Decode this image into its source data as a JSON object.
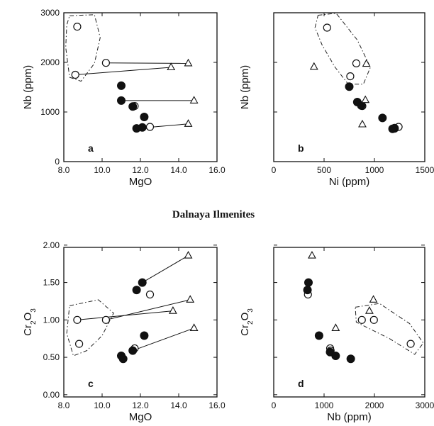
{
  "title": "Dalnaya Ilmenites",
  "chart_data": [
    {
      "panel": "a",
      "type": "scatter",
      "xlabel": "MgO",
      "ylabel": "Nb (ppm)",
      "xlim": [
        8.0,
        16.0
      ],
      "ylim": [
        0,
        3000
      ],
      "xticks": [
        "8.0",
        "10.0",
        "12.0",
        "14.0",
        "16.0"
      ],
      "yticks": [
        "0",
        "1000",
        "2000",
        "3000"
      ],
      "ytick_values": [
        0,
        1000,
        2000,
        3000
      ],
      "ytick_offset": 0,
      "points": {
        "open_circle": [
          [
            8.7,
            2720
          ],
          [
            8.6,
            1750
          ],
          [
            10.2,
            1990
          ],
          [
            11.7,
            1120
          ],
          [
            12.5,
            700
          ]
        ],
        "filled_circle": [
          [
            11.0,
            1530
          ],
          [
            11.0,
            1230
          ],
          [
            11.6,
            1110
          ],
          [
            12.2,
            900
          ],
          [
            11.8,
            670
          ],
          [
            12.1,
            690
          ]
        ],
        "triangle": [
          [
            14.5,
            1980
          ],
          [
            13.6,
            1900
          ],
          [
            14.8,
            1230
          ],
          [
            14.5,
            760
          ]
        ]
      },
      "lines": [
        [
          [
            8.6,
            1750
          ],
          [
            13.6,
            1900
          ]
        ],
        [
          [
            10.2,
            1990
          ],
          [
            14.5,
            1980
          ]
        ],
        [
          [
            11.0,
            1230
          ],
          [
            14.8,
            1230
          ]
        ],
        [
          [
            11.8,
            670
          ],
          [
            14.5,
            760
          ]
        ]
      ],
      "envelope": [
        [
          8.3,
          2940
        ],
        [
          9.6,
          2960
        ],
        [
          9.9,
          2500
        ],
        [
          9.6,
          1980
        ],
        [
          8.9,
          1620
        ],
        [
          8.3,
          1700
        ],
        [
          8.1,
          2300
        ],
        [
          8.15,
          2750
        ]
      ]
    },
    {
      "panel": "b",
      "type": "scatter",
      "xlabel": "Ni (ppm)",
      "ylabel": "Nb (ppm)",
      "xlim": [
        0,
        1500
      ],
      "ylim": [
        0,
        3000
      ],
      "xticks": [
        "0",
        "500",
        "1000",
        "1500"
      ],
      "yticks": [],
      "ytick_values": [
        0,
        1000,
        2000,
        3000
      ],
      "ytick_offset": 0,
      "points": {
        "open_circle": [
          [
            530,
            2700
          ],
          [
            820,
            1980
          ],
          [
            760,
            1720
          ],
          [
            880,
            1120
          ],
          [
            1240,
            700
          ],
          [
            1200,
            680
          ]
        ],
        "filled_circle": [
          [
            750,
            1510
          ],
          [
            830,
            1200
          ],
          [
            870,
            1130
          ],
          [
            1080,
            880
          ],
          [
            1200,
            670
          ],
          [
            1180,
            660
          ]
        ],
        "triangle": [
          [
            400,
            1910
          ],
          [
            920,
            1970
          ],
          [
            910,
            1240
          ],
          [
            880,
            750
          ]
        ]
      },
      "lines": [],
      "envelope": [
        [
          440,
          2950
        ],
        [
          620,
          2990
        ],
        [
          830,
          2450
        ],
        [
          960,
          1900
        ],
        [
          890,
          1560
        ],
        [
          740,
          1560
        ],
        [
          610,
          1900
        ],
        [
          480,
          2350
        ],
        [
          410,
          2700
        ]
      ]
    },
    {
      "panel": "c",
      "type": "scatter",
      "xlabel": "MgO",
      "ylabel": "Cr2O3",
      "xlim": [
        8.0,
        16.0
      ],
      "ylim": [
        0.0,
        2.0
      ],
      "xticks": [
        "8.0",
        "10.0",
        "12.0",
        "14.0",
        "16.0"
      ],
      "yticks": [
        "0.00",
        "0.50",
        "1.00",
        "1.50",
        "2.00"
      ],
      "ytick_values": [
        0.0,
        0.5,
        1.0,
        1.5,
        2.0
      ],
      "ytick_offset": 0.03,
      "points": {
        "open_circle": [
          [
            8.7,
            1.03
          ],
          [
            8.8,
            0.71
          ],
          [
            10.2,
            1.03
          ],
          [
            11.7,
            0.65
          ],
          [
            12.5,
            1.37
          ]
        ],
        "filled_circle": [
          [
            11.8,
            1.43
          ],
          [
            12.1,
            1.53
          ],
          [
            12.2,
            0.82
          ],
          [
            11.6,
            0.62
          ],
          [
            11.0,
            0.55
          ],
          [
            11.1,
            0.51
          ]
        ],
        "triangle": [
          [
            14.5,
            1.89
          ],
          [
            13.7,
            1.15
          ],
          [
            14.6,
            1.3
          ],
          [
            14.8,
            0.92
          ]
        ]
      },
      "lines": [
        [
          [
            12.1,
            1.53
          ],
          [
            14.5,
            1.89
          ]
        ],
        [
          [
            8.7,
            1.03
          ],
          [
            13.7,
            1.15
          ]
        ],
        [
          [
            10.2,
            1.03
          ],
          [
            14.6,
            1.3
          ]
        ],
        [
          [
            11.6,
            0.62
          ],
          [
            14.8,
            0.92
          ]
        ]
      ],
      "envelope": [
        [
          8.3,
          1.22
        ],
        [
          9.8,
          1.3
        ],
        [
          10.6,
          1.12
        ],
        [
          10.0,
          0.82
        ],
        [
          9.2,
          0.62
        ],
        [
          8.5,
          0.55
        ],
        [
          8.15,
          0.85
        ]
      ]
    },
    {
      "panel": "d",
      "type": "scatter",
      "xlabel": "Nb (ppm)",
      "ylabel": "Cr2O3",
      "xlim": [
        0,
        3000
      ],
      "ylim": [
        0.0,
        2.0
      ],
      "xticks": [
        "0",
        "1000",
        "2000",
        "3000"
      ],
      "yticks": [],
      "ytick_values": [
        0.0,
        0.5,
        1.0,
        1.5,
        2.0
      ],
      "ytick_offset": 0.03,
      "points": {
        "open_circle": [
          [
            680,
            1.37
          ],
          [
            1750,
            1.03
          ],
          [
            1990,
            1.03
          ],
          [
            2720,
            0.71
          ],
          [
            1120,
            0.65
          ],
          [
            1130,
            0.62
          ]
        ],
        "filled_circle": [
          [
            670,
            1.43
          ],
          [
            690,
            1.53
          ],
          [
            900,
            0.82
          ],
          [
            1120,
            0.6
          ],
          [
            1230,
            0.55
          ],
          [
            1530,
            0.51
          ]
        ],
        "triangle": [
          [
            760,
            1.89
          ],
          [
            1900,
            1.15
          ],
          [
            1980,
            1.3
          ],
          [
            1230,
            0.92
          ]
        ]
      },
      "lines": [],
      "envelope": [
        [
          1620,
          1.2
        ],
        [
          2100,
          1.25
        ],
        [
          2700,
          0.98
        ],
        [
          2970,
          0.72
        ],
        [
          2800,
          0.57
        ],
        [
          2300,
          0.78
        ],
        [
          1640,
          1.0
        ]
      ]
    }
  ]
}
